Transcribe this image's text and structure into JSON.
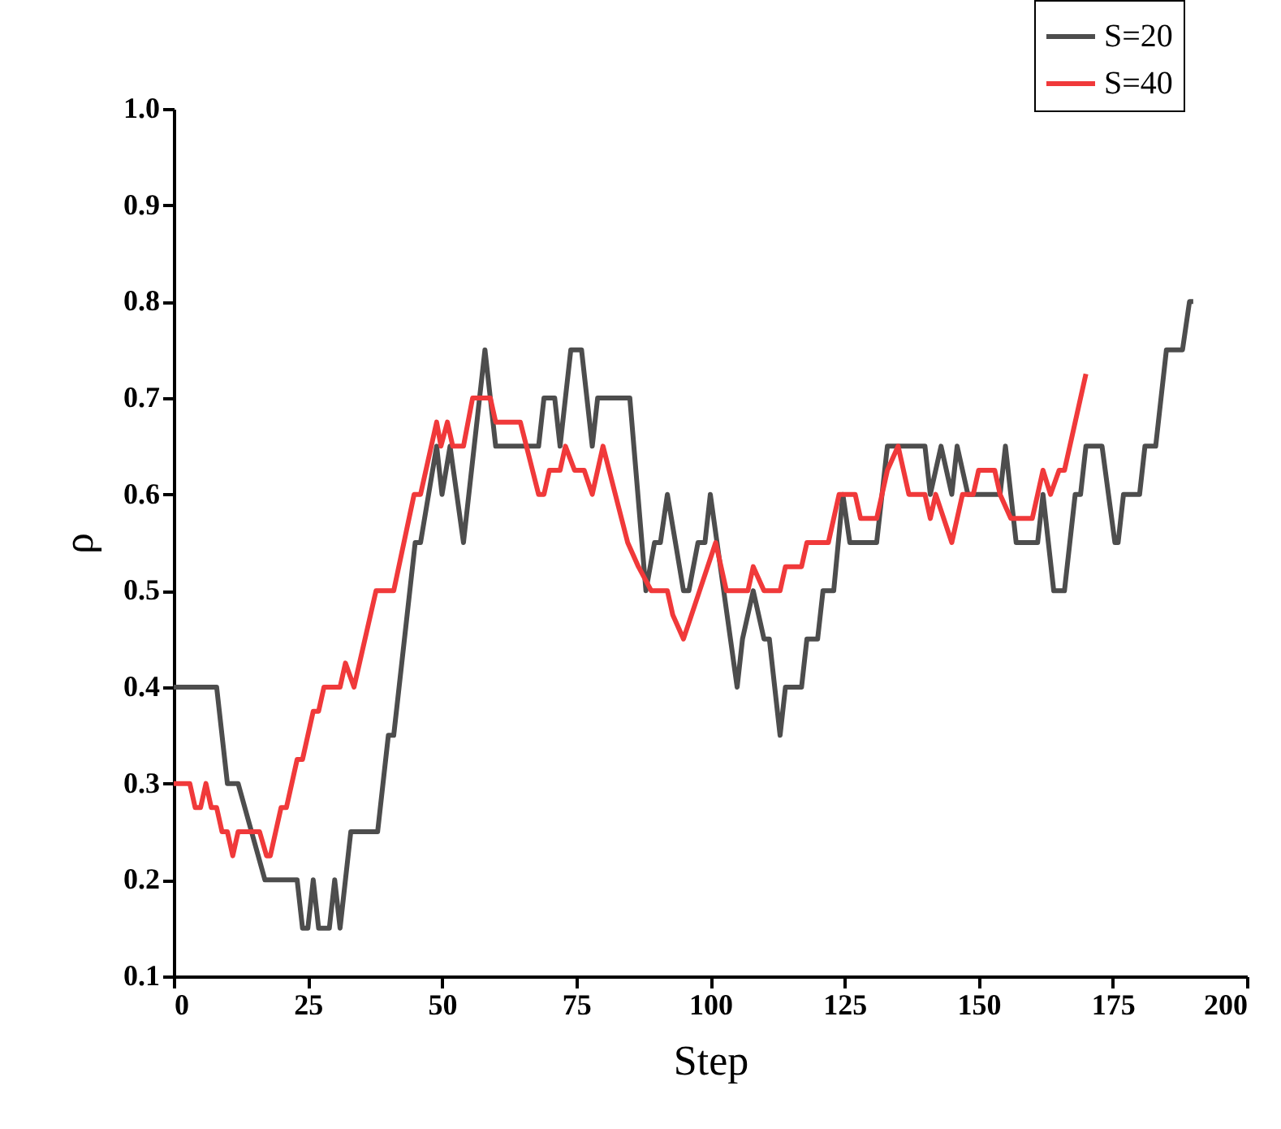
{
  "chart_data": {
    "type": "line",
    "xlabel": "Step",
    "ylabel": "ρ",
    "xlim": [
      0,
      200
    ],
    "xticks": [
      0,
      25,
      50,
      75,
      100,
      125,
      150,
      175,
      200
    ],
    "ylim": [
      0.1,
      1.0
    ],
    "yticks": [
      0.1,
      0.2,
      0.3,
      0.4,
      0.5,
      0.6,
      0.7,
      0.8,
      0.9,
      {
        "value": 1.0,
        "label": "1.0"
      }
    ],
    "grid": false,
    "legend": "top right",
    "marker": "none",
    "line_style": "solid",
    "series": [
      {
        "name": "S=20",
        "color": "#4d4d4d",
        "x": [
          0,
          8,
          10,
          12,
          17,
          23,
          24,
          25,
          26,
          27,
          29,
          30,
          31,
          33,
          38,
          40,
          41,
          45,
          46,
          49,
          50,
          51.5,
          54,
          58,
          60,
          68,
          69,
          71,
          72,
          74,
          76,
          78,
          79,
          85,
          88,
          89.6,
          90.7,
          92,
          95,
          96,
          97.7,
          99,
          100,
          105,
          106,
          108,
          110,
          111,
          113,
          114,
          117,
          118,
          120,
          121,
          123,
          124.7,
          126,
          131,
          133,
          140,
          141,
          143,
          145,
          146,
          148,
          154,
          155,
          157,
          161,
          162,
          164,
          166,
          168,
          169,
          170,
          173,
          175.4,
          176,
          177,
          180,
          181,
          183,
          185,
          188,
          189.3,
          190
        ],
        "values": [
          0.4,
          0.4,
          0.3,
          0.3,
          0.2,
          0.2,
          0.15,
          0.15,
          0.2,
          0.15,
          0.15,
          0.2,
          0.15,
          0.25,
          0.25,
          0.35,
          0.35,
          0.55,
          0.55,
          0.65,
          0.6,
          0.65,
          0.55,
          0.75,
          0.65,
          0.65,
          0.7,
          0.7,
          0.65,
          0.75,
          0.75,
          0.65,
          0.7,
          0.7,
          0.5,
          0.55,
          0.55,
          0.6,
          0.5,
          0.5,
          0.55,
          0.55,
          0.6,
          0.4,
          0.45,
          0.5,
          0.45,
          0.45,
          0.35,
          0.4,
          0.4,
          0.45,
          0.45,
          0.5,
          0.5,
          0.6,
          0.55,
          0.55,
          0.65,
          0.65,
          0.6,
          0.65,
          0.6,
          0.65,
          0.6,
          0.6,
          0.65,
          0.55,
          0.55,
          0.6,
          0.5,
          0.5,
          0.6,
          0.6,
          0.65,
          0.65,
          0.55,
          0.55,
          0.6,
          0.6,
          0.65,
          0.65,
          0.75,
          0.75,
          0.8,
          0.8
        ]
      },
      {
        "name": "S=40",
        "color": "#f0393a",
        "x": [
          0,
          3,
          4,
          5,
          6,
          7,
          8,
          9,
          10,
          11,
          12,
          16,
          17.3,
          18,
          20,
          21,
          23,
          24,
          26,
          27,
          28,
          31,
          32,
          33.6,
          37.7,
          41,
          44.8,
          46,
          49,
          49.8,
          51,
          52,
          54,
          55.7,
          59,
          60,
          64.6,
          68,
          69,
          70,
          72,
          73,
          74.7,
          76.5,
          78,
          80,
          84.6,
          86.6,
          89,
          92,
          93,
          95,
          98,
          101,
          103,
          107,
          108,
          110,
          113,
          114,
          117,
          118,
          122,
          124,
          127,
          128,
          131,
          133,
          135,
          137,
          140,
          141,
          142,
          145,
          147,
          149,
          150,
          153,
          154,
          156,
          160,
          162,
          163.4,
          165,
          166,
          170
        ],
        "values": [
          0.3,
          0.3,
          0.275,
          0.275,
          0.3,
          0.275,
          0.275,
          0.25,
          0.25,
          0.225,
          0.25,
          0.25,
          0.225,
          0.225,
          0.275,
          0.275,
          0.325,
          0.325,
          0.375,
          0.375,
          0.4,
          0.4,
          0.425,
          0.4,
          0.5,
          0.5,
          0.6,
          0.6,
          0.675,
          0.65,
          0.675,
          0.65,
          0.65,
          0.7,
          0.7,
          0.675,
          0.675,
          0.6,
          0.6,
          0.625,
          0.625,
          0.65,
          0.625,
          0.625,
          0.6,
          0.65,
          0.55,
          0.525,
          0.5,
          0.5,
          0.475,
          0.45,
          0.5,
          0.55,
          0.5,
          0.5,
          0.525,
          0.5,
          0.5,
          0.525,
          0.525,
          0.55,
          0.55,
          0.6,
          0.6,
          0.575,
          0.575,
          0.625,
          0.65,
          0.6,
          0.6,
          0.575,
          0.6,
          0.55,
          0.6,
          0.6,
          0.625,
          0.625,
          0.6,
          0.575,
          0.575,
          0.625,
          0.6,
          0.625,
          0.625,
          0.725
        ]
      }
    ]
  }
}
